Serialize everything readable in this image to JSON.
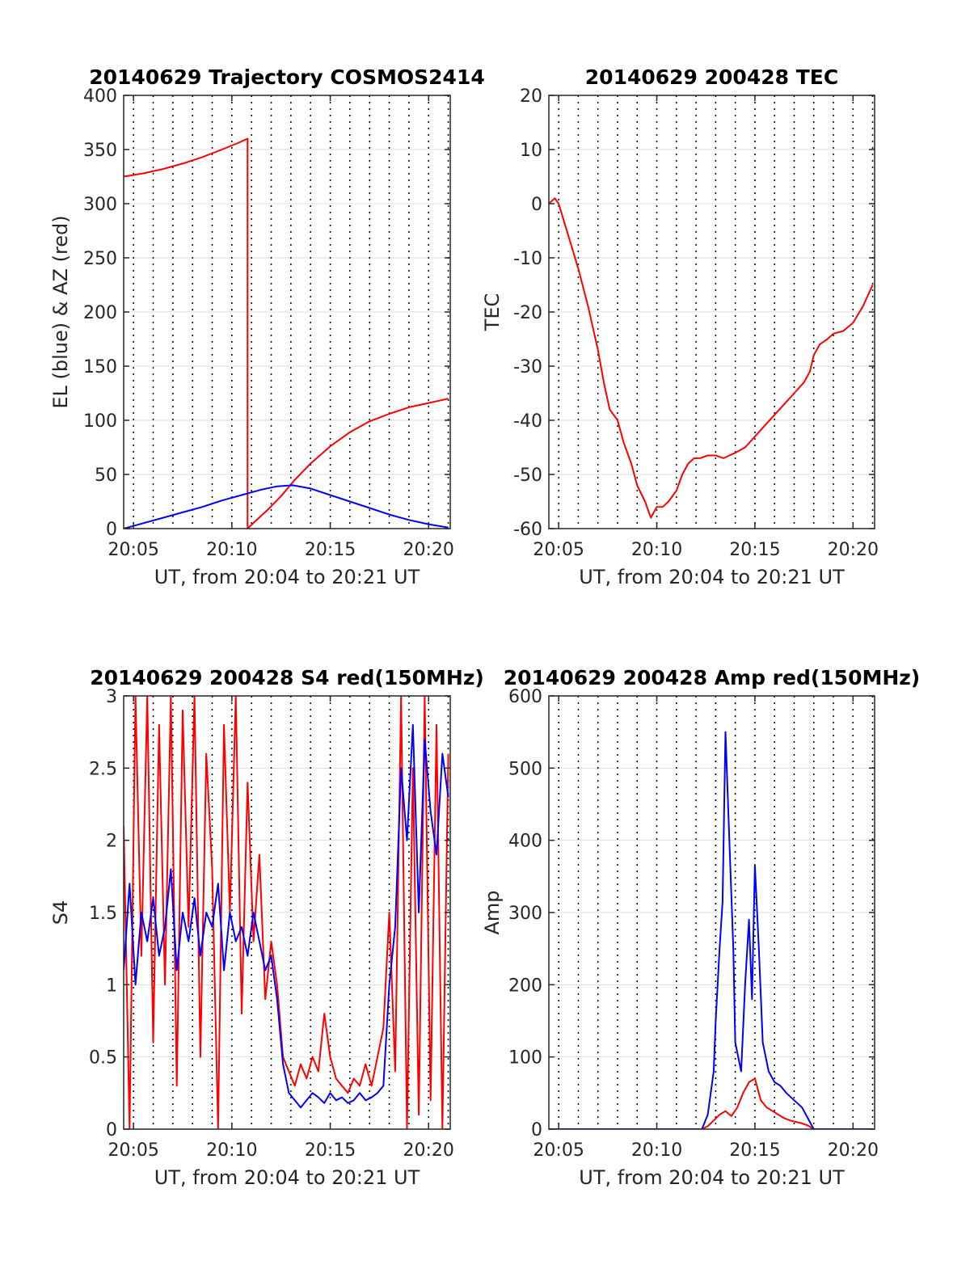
{
  "chart_data": [
    {
      "type": "line",
      "title": "20140629 Trajectory COSMOS2414",
      "xlabel": "UT, from 20:04 to 20:21 UT",
      "ylabel": "EL (blue) & AZ (red)",
      "xlim": [
        4.5,
        21.1
      ],
      "ylim": [
        0,
        400
      ],
      "x_tick_values": [
        5,
        10,
        15,
        20
      ],
      "x_tick_labels": [
        "20:05",
        "20:10",
        "20:15",
        "20:20"
      ],
      "y_ticks": [
        0,
        50,
        100,
        150,
        200,
        250,
        300,
        350,
        400
      ],
      "grid": true,
      "series": [
        {
          "name": "AZ",
          "color": "#ff0000",
          "x": [
            4.5,
            5.5,
            6.5,
            7.5,
            8.5,
            9.5,
            10.3,
            10.8,
            10.8,
            11.2,
            11.8,
            12.5,
            13.2,
            14.0,
            15.0,
            16.0,
            17.0,
            18.0,
            19.0,
            20.0,
            21.0
          ],
          "y": [
            325,
            328,
            332,
            337,
            343,
            350,
            356,
            360,
            0,
            7,
            17,
            30,
            45,
            60,
            76,
            89,
            99,
            106,
            112,
            116,
            120
          ]
        },
        {
          "name": "EL",
          "color": "#0000ff",
          "x": [
            4.5,
            5.5,
            6.5,
            7.5,
            8.5,
            9.5,
            10.5,
            11.5,
            12.3,
            13.1,
            14.0,
            15.0,
            16.0,
            17.0,
            18.0,
            19.0,
            20.0,
            21.0
          ],
          "y": [
            0,
            5,
            10,
            15,
            20,
            26,
            31,
            36,
            39,
            40,
            37,
            31,
            25,
            19,
            13,
            8,
            4,
            1
          ]
        }
      ]
    },
    {
      "type": "line",
      "title": "20140629 200428 TEC",
      "xlabel": "UT, from 20:04 to 20:21 UT",
      "ylabel": "TEC",
      "xlim": [
        4.5,
        21.1
      ],
      "ylim": [
        -60,
        20
      ],
      "x_tick_values": [
        5,
        10,
        15,
        20
      ],
      "x_tick_labels": [
        "20:05",
        "20:10",
        "20:15",
        "20:20"
      ],
      "y_ticks": [
        -60,
        -50,
        -40,
        -30,
        -20,
        -10,
        0,
        10,
        20
      ],
      "grid": true,
      "series": [
        {
          "color": "#ff0000",
          "x": [
            4.5,
            4.8,
            5.0,
            5.5,
            6.0,
            6.5,
            7.0,
            7.3,
            7.6,
            8.0,
            8.3,
            8.7,
            9.0,
            9.4,
            9.7,
            10.0,
            10.3,
            10.6,
            11.0,
            11.3,
            11.6,
            11.9,
            12.2,
            12.6,
            13.0,
            13.4,
            14.0,
            14.5,
            15.0,
            15.5,
            16.0,
            16.5,
            17.0,
            17.5,
            17.8,
            18.0,
            18.3,
            18.7,
            19.0,
            19.5,
            20.0,
            20.5,
            21.0
          ],
          "y": [
            0,
            1,
            0,
            -6,
            -12,
            -19,
            -27,
            -33,
            -38,
            -40,
            -44,
            -48,
            -52,
            -55,
            -58,
            -56,
            -56,
            -55,
            -53,
            -50,
            -48,
            -47,
            -47,
            -46.5,
            -46.5,
            -47,
            -46,
            -45,
            -43,
            -41,
            -39,
            -37,
            -35,
            -33,
            -31,
            -28,
            -26,
            -25,
            -24,
            -23.5,
            -22,
            -19,
            -15
          ]
        }
      ]
    },
    {
      "type": "line",
      "title": "20140629 200428 S4 red(150MHz)",
      "xlabel": "UT, from 20:04 to 20:21 UT",
      "ylabel": "S4",
      "xlim": [
        4.5,
        21.1
      ],
      "ylim": [
        0,
        3
      ],
      "x_tick_values": [
        5,
        10,
        15,
        20
      ],
      "x_tick_labels": [
        "20:05",
        "20:10",
        "20:15",
        "20:20"
      ],
      "y_ticks": [
        0,
        0.5,
        1,
        1.5,
        2,
        2.5,
        3
      ],
      "grid": true,
      "series": [
        {
          "color": "#ff0000",
          "x": [
            4.5,
            4.8,
            5.1,
            5.4,
            5.7,
            6.0,
            6.3,
            6.6,
            6.9,
            7.2,
            7.5,
            7.8,
            8.1,
            8.4,
            8.7,
            9.0,
            9.3,
            9.6,
            9.9,
            10.2,
            10.5,
            10.8,
            11.1,
            11.4,
            11.7,
            12.0,
            12.3,
            12.6,
            12.9,
            13.2,
            13.5,
            13.8,
            14.1,
            14.4,
            14.7,
            15.0,
            15.3,
            15.6,
            15.9,
            16.2,
            16.5,
            16.8,
            17.1,
            17.4,
            17.7,
            18.0,
            18.3,
            18.6,
            18.9,
            19.2,
            19.5,
            19.8,
            20.1,
            20.4,
            20.7,
            21.0
          ],
          "y": [
            2.1,
            0.0,
            3.0,
            1.2,
            3.0,
            0.6,
            2.8,
            1.0,
            3.0,
            0.3,
            2.9,
            1.4,
            3.0,
            0.5,
            2.6,
            1.8,
            0.0,
            2.8,
            1.5,
            3.0,
            0.8,
            2.4,
            1.3,
            1.9,
            0.9,
            1.3,
            1.0,
            0.5,
            0.4,
            0.3,
            0.45,
            0.35,
            0.5,
            0.4,
            0.8,
            0.5,
            0.35,
            0.3,
            0.25,
            0.35,
            0.3,
            0.45,
            0.3,
            0.5,
            0.7,
            1.5,
            0.4,
            3.0,
            0.0,
            2.5,
            0.1,
            3.0,
            0.2,
            2.8,
            0.0,
            2.6
          ]
        },
        {
          "color": "#0000ff",
          "x": [
            4.5,
            4.8,
            5.1,
            5.4,
            5.7,
            6.0,
            6.3,
            6.6,
            6.9,
            7.2,
            7.5,
            7.8,
            8.1,
            8.4,
            8.7,
            9.0,
            9.3,
            9.6,
            9.9,
            10.2,
            10.5,
            10.8,
            11.1,
            11.4,
            11.7,
            12.0,
            12.3,
            12.6,
            12.9,
            13.2,
            13.5,
            13.8,
            14.1,
            14.4,
            14.7,
            15.0,
            15.3,
            15.6,
            15.9,
            16.2,
            16.5,
            16.8,
            17.1,
            17.4,
            17.7,
            18.0,
            18.3,
            18.6,
            18.9,
            19.2,
            19.5,
            19.8,
            20.1,
            20.4,
            20.7,
            21.0
          ],
          "y": [
            1.1,
            1.7,
            1.0,
            1.5,
            1.3,
            1.6,
            1.2,
            1.4,
            1.8,
            1.1,
            1.5,
            1.3,
            1.6,
            1.2,
            1.5,
            1.4,
            1.7,
            1.1,
            1.5,
            1.3,
            1.4,
            1.2,
            1.5,
            1.3,
            1.1,
            1.2,
            0.9,
            0.45,
            0.25,
            0.2,
            0.15,
            0.2,
            0.25,
            0.22,
            0.18,
            0.25,
            0.2,
            0.22,
            0.18,
            0.2,
            0.25,
            0.2,
            0.22,
            0.25,
            0.3,
            1.0,
            1.4,
            2.5,
            2.0,
            2.8,
            1.5,
            2.7,
            2.2,
            1.9,
            2.6,
            2.3
          ]
        }
      ]
    },
    {
      "type": "line",
      "title": "20140629 200428 Amp red(150MHz)",
      "xlabel": "UT, from 20:04 to 20:21 UT",
      "ylabel": "Amp",
      "xlim": [
        4.5,
        21.1
      ],
      "ylim": [
        0,
        600
      ],
      "x_tick_values": [
        5,
        10,
        15,
        20
      ],
      "x_tick_labels": [
        "20:05",
        "20:10",
        "20:15",
        "20:20"
      ],
      "y_ticks": [
        0,
        100,
        200,
        300,
        400,
        500,
        600
      ],
      "grid": true,
      "series": [
        {
          "color": "#ff0000",
          "x": [
            4.5,
            12.3,
            12.6,
            12.9,
            13.2,
            13.5,
            13.8,
            14.1,
            14.4,
            14.7,
            15.0,
            15.3,
            15.6,
            15.9,
            16.2,
            16.5,
            16.8,
            17.1,
            17.4,
            17.7,
            18.0,
            21.0
          ],
          "y": [
            0,
            0,
            4,
            12,
            20,
            25,
            18,
            30,
            50,
            65,
            70,
            40,
            30,
            25,
            20,
            15,
            12,
            10,
            8,
            5,
            0,
            0
          ]
        },
        {
          "color": "#0000ff",
          "x": [
            4.5,
            12.3,
            12.6,
            12.9,
            13.0,
            13.2,
            13.35,
            13.5,
            13.7,
            13.9,
            14.0,
            14.3,
            14.5,
            14.7,
            14.85,
            15.0,
            15.2,
            15.4,
            15.7,
            16.0,
            16.3,
            16.6,
            17.0,
            17.4,
            17.7,
            18.0,
            21.0
          ],
          "y": [
            0,
            0,
            20,
            80,
            150,
            250,
            315,
            550,
            400,
            250,
            120,
            80,
            200,
            290,
            180,
            365,
            250,
            120,
            80,
            65,
            60,
            50,
            40,
            30,
            15,
            0,
            0
          ]
        }
      ]
    }
  ]
}
